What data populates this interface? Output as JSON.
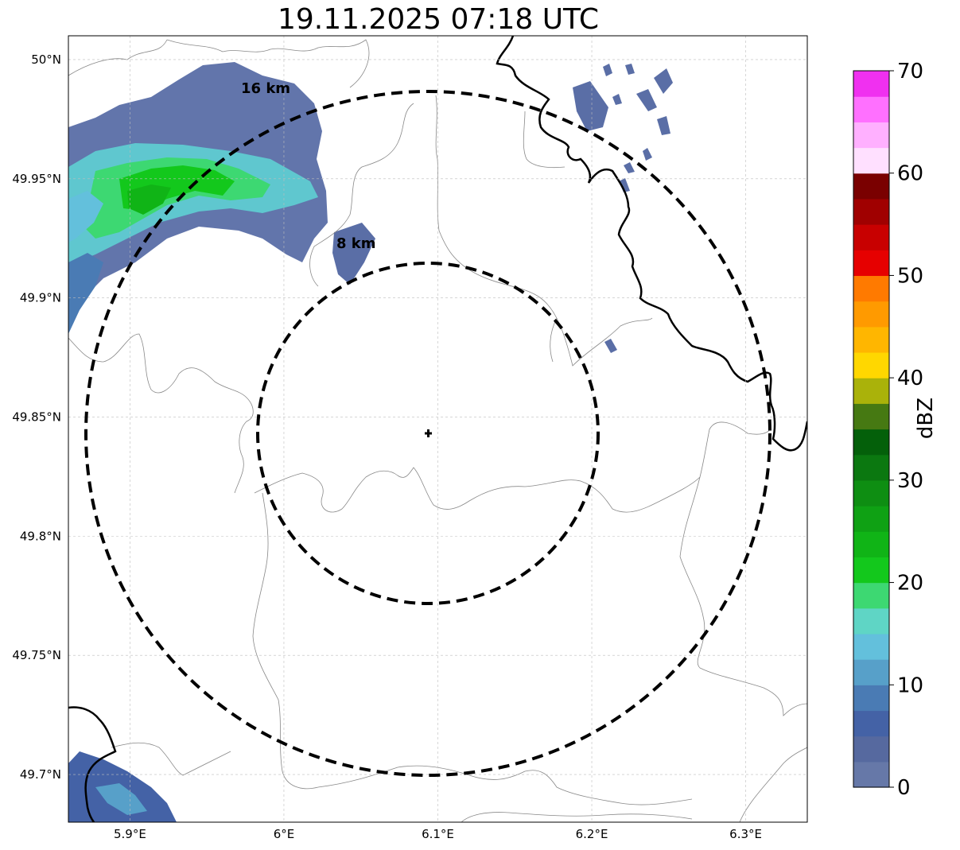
{
  "title": "19.11.2025 07:18 UTC",
  "map": {
    "lon_range": [
      5.86,
      6.34
    ],
    "lat_range": [
      49.68,
      50.01
    ],
    "lon_ticks": [
      {
        "value": 5.9,
        "label": "5.9°E"
      },
      {
        "value": 6.0,
        "label": "6°E"
      },
      {
        "value": 6.1,
        "label": "6.1°E"
      },
      {
        "value": 6.2,
        "label": "6.2°E"
      },
      {
        "value": 6.3,
        "label": "6.3°E"
      }
    ],
    "lat_ticks": [
      {
        "value": 50.0,
        "label": "50°N"
      },
      {
        "value": 49.95,
        "label": "49.95°N"
      },
      {
        "value": 49.9,
        "label": "49.9°N"
      },
      {
        "value": 49.85,
        "label": "49.85°N"
      },
      {
        "value": 49.8,
        "label": "49.8°N"
      },
      {
        "value": 49.75,
        "label": "49.75°N"
      },
      {
        "value": 49.7,
        "label": "49.7°N"
      }
    ],
    "gridlines": true,
    "center_marker": {
      "lon": 6.095,
      "lat": 49.843,
      "symbol": "+"
    },
    "range_rings": [
      {
        "radius_km": 8,
        "label": "8 km"
      },
      {
        "radius_km": 16,
        "label": "16 km"
      }
    ]
  },
  "colorbar": {
    "label": "dBZ",
    "min": 0,
    "max": 70,
    "tick_labels": [
      "0",
      "10",
      "20",
      "30",
      "40",
      "50",
      "60",
      "70"
    ],
    "colors": [
      "#6678a8",
      "#56699f",
      "#4462a6",
      "#4a7bb4",
      "#57a0c9",
      "#63c0dc",
      "#5fd5c5",
      "#3dd872",
      "#13c81c",
      "#10b416",
      "#0fa114",
      "#0e8e12",
      "#0b7810",
      "#04600a",
      "#467912",
      "#aab20a",
      "#ffd700",
      "#ffb600",
      "#ff9a00",
      "#ff7a00",
      "#e60000",
      "#c80000",
      "#a00000",
      "#7a0000",
      "#ffe0ff",
      "#ffb0ff",
      "#ff70ff",
      "#f030f0"
    ]
  }
}
